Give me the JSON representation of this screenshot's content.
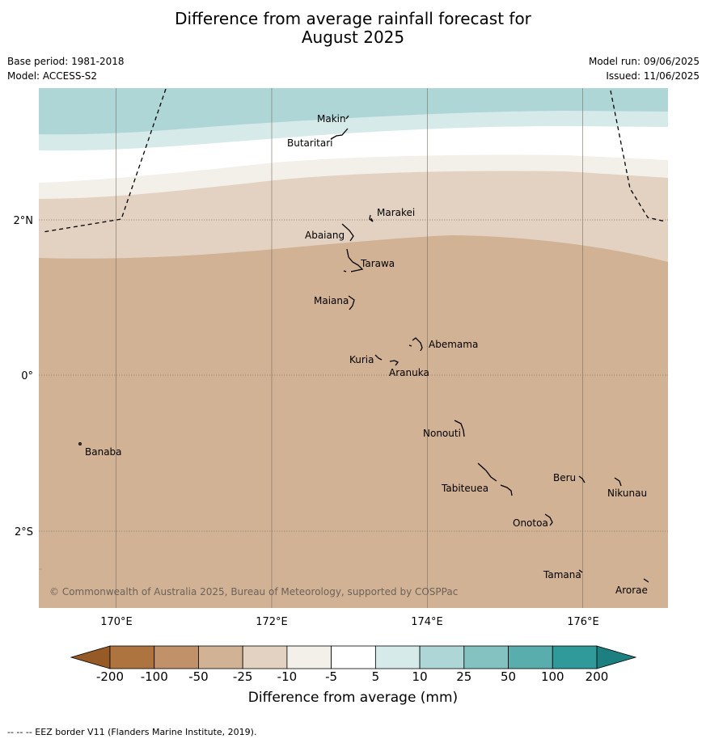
{
  "header": {
    "title_line1": "Difference from average rainfall forecast for",
    "title_line2": "August 2025",
    "base_period": "Base period: 1981-2018",
    "model": "Model: ACCESS-S2",
    "model_run": "Model run: 09/06/2025",
    "issued": "Issued: 11/06/2025"
  },
  "map": {
    "lon_labels": [
      "170°E",
      "172°E",
      "174°E",
      "176°E"
    ],
    "lat_labels": [
      "2°N",
      "0°",
      "2°S"
    ],
    "places": [
      "Makin",
      "Butaritari",
      "Marakei",
      "Abaiang",
      "Tarawa",
      "Maiana",
      "Abemama",
      "Kuria",
      "Aranuka",
      "Nonouti",
      "Banaba",
      "Beru",
      "Nikunau",
      "Tabiteuea",
      "Onotoa",
      "Tamana",
      "Arorae"
    ],
    "copyright": "© Commonwealth of Australia 2025, Bureau of Meteorology, supported by COSPPac",
    "band_colors": {
      "strong_wet": "#aed6d6",
      "wet": "#d6eaea",
      "neutral": "#ffffff",
      "slight_dry": "#f3efe9",
      "dry": "#e3d1c1",
      "drier": "#d2b294"
    }
  },
  "colorbar": {
    "ticks": [
      "-200",
      "-100",
      "-50",
      "-25",
      "-10",
      "-5",
      "5",
      "10",
      "25",
      "50",
      "100",
      "200"
    ],
    "colors": [
      "#ad7440",
      "#c19169",
      "#d2b294",
      "#e3d1c1",
      "#f3efe9",
      "#ffffff",
      "#d6eaea",
      "#aed6d6",
      "#84c2c2",
      "#5aadad",
      "#309999"
    ],
    "label": "Difference from average (mm)"
  },
  "footer": {
    "legend_text": "--  --  -- EEZ border V11 (Flanders Marine Institute, 2019)."
  }
}
